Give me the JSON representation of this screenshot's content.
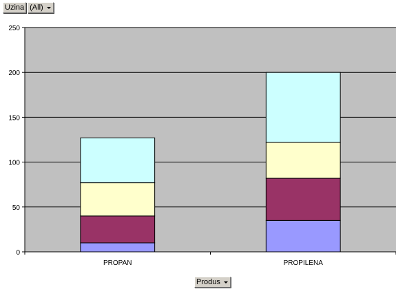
{
  "page_field": {
    "name": "Uzina",
    "value": "(All)"
  },
  "axis_field": {
    "name": "Produs"
  },
  "chart_data": {
    "type": "bar",
    "stacked": true,
    "categories": [
      "PROPAN",
      "PROPILENA"
    ],
    "series": [
      {
        "color": "#9999ff",
        "values": [
          10,
          35
        ]
      },
      {
        "color": "#993366",
        "values": [
          30,
          47
        ]
      },
      {
        "color": "#ffffcc",
        "values": [
          37,
          40
        ]
      },
      {
        "color": "#ccffff",
        "values": [
          50,
          78
        ]
      }
    ],
    "ylim": [
      0,
      250
    ],
    "yticks": [
      "0",
      "50",
      "100",
      "150",
      "200",
      "250"
    ],
    "ytick_values": [
      0,
      50,
      100,
      150,
      200,
      250
    ],
    "grid": true,
    "plot_background": "#c0c0c0"
  }
}
